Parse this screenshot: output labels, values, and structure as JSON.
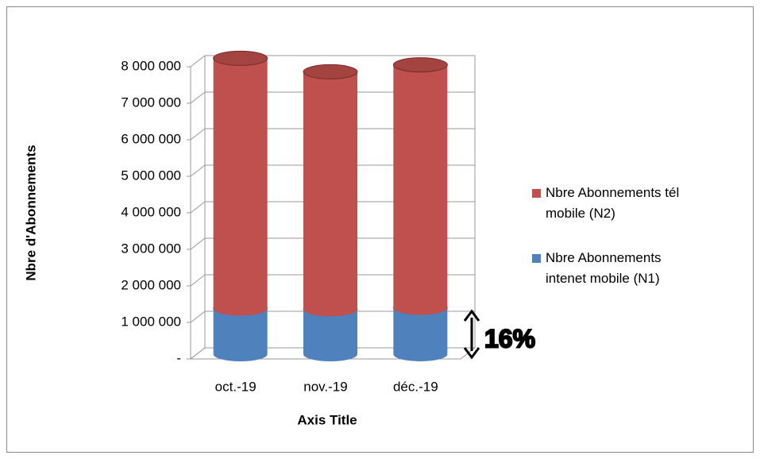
{
  "chart_data": {
    "type": "bar3d_stacked",
    "categories": [
      "oct.-19",
      "nov.-19",
      "déc.-19"
    ],
    "series": [
      {
        "name": "Nbre Abonnements intenet mobile (N1)",
        "color": "#4f81bd",
        "values": [
          1250000,
          1230000,
          1270000
        ]
      },
      {
        "name": "Nbre Abonnements tél mobile (N2)",
        "color": "#c0504d",
        "values": [
          6850000,
          6500000,
          6650000
        ]
      }
    ],
    "ylim": [
      0,
      8000000
    ],
    "yticks": [
      {
        "value": 0,
        "label": "-"
      },
      {
        "value": 1000000,
        "label": "1 000 000"
      },
      {
        "value": 2000000,
        "label": "2 000 000"
      },
      {
        "value": 3000000,
        "label": "3 000 000"
      },
      {
        "value": 4000000,
        "label": "4 000 000"
      },
      {
        "value": 5000000,
        "label": "5 000 000"
      },
      {
        "value": 6000000,
        "label": "6 000 000"
      },
      {
        "value": 7000000,
        "label": "7 000 000"
      },
      {
        "value": 8000000,
        "label": "8 000 000"
      }
    ],
    "xlabel": "Axis Title",
    "ylabel": "Nbre d'Abonnements",
    "annotation": "16%",
    "grid": true,
    "legend": "right"
  }
}
